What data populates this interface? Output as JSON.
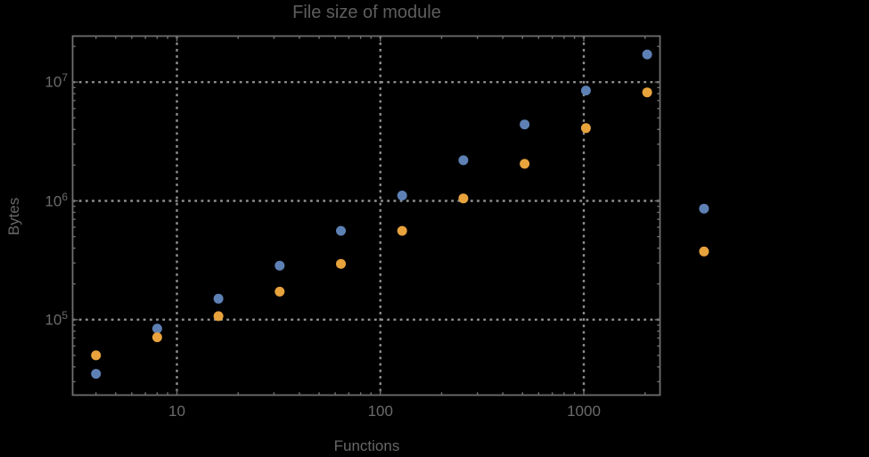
{
  "chart_data": {
    "type": "scatter",
    "title": "File size of module",
    "xlabel": "Functions",
    "ylabel": "Bytes",
    "x_scale": "log",
    "y_scale": "log",
    "xlim": [
      3.1,
      2370
    ],
    "ylim": [
      23000,
      24400000
    ],
    "grid": "dotted gray, at decade ticks, on",
    "legend": "none",
    "x_ticks": [
      {
        "label": "10",
        "value": 10
      },
      {
        "label": "100",
        "value": 100
      },
      {
        "label": "1000",
        "value": 1000
      }
    ],
    "y_ticks": [
      {
        "base": "10",
        "exp": "5",
        "value": 100000
      },
      {
        "base": "10",
        "exp": "6",
        "value": 1000000
      },
      {
        "base": "10",
        "exp": "7",
        "value": 10000000
      }
    ],
    "series": [
      {
        "name": "blue-series",
        "color": "#5E81B5",
        "x": [
          4,
          8,
          16,
          32,
          64,
          128,
          256,
          512,
          1024,
          2048,
          3900
        ],
        "y": [
          35000,
          84000,
          150000,
          285000,
          560000,
          1110000,
          2200000,
          4400000,
          8500000,
          17100000,
          860000
        ]
      },
      {
        "name": "orange-series",
        "color": "#E8A33D",
        "x": [
          4,
          8,
          16,
          32,
          64,
          128,
          256,
          512,
          1024,
          2048,
          3900
        ],
        "y": [
          50000,
          71000,
          107000,
          172000,
          295000,
          560000,
          1050000,
          2050000,
          4100000,
          8200000,
          375000
        ]
      }
    ],
    "style": {
      "background": "#000000",
      "frame_color": "#6E6E6E",
      "grid_color": "#8F8F8F",
      "tick_text_color": "#6B6B6B",
      "title_color": "#5E5E5E",
      "point_radius_px": 5.5
    }
  }
}
